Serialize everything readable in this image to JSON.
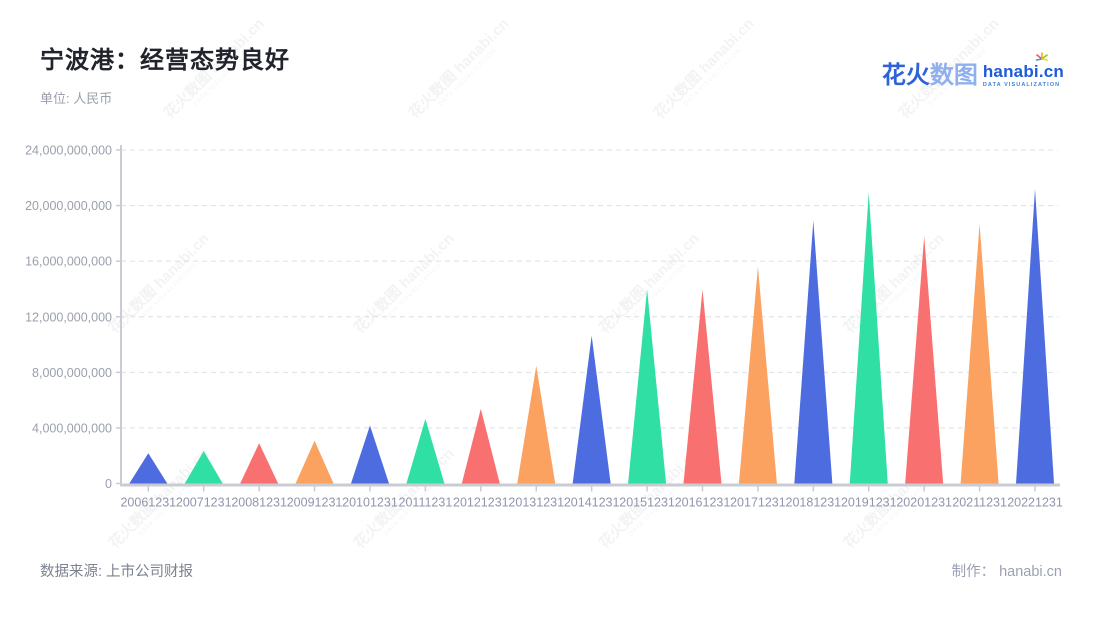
{
  "header": {
    "title": "宁波港：经营态势良好",
    "subtitle": "单位: 人民币"
  },
  "logo": {
    "brand_cn_bold": "花火",
    "brand_cn_light": "数图",
    "brand_en": "hanabi.cn",
    "tagline": "DATA VISUALIZATION",
    "sparkle_colors": [
      "#f5a623",
      "#7ed321",
      "#4a90d9",
      "#e85b5b",
      "#f8d620"
    ]
  },
  "watermark": {
    "line1": "花火数图 hanabi.cn",
    "line2": "DATA VISUALIZATION"
  },
  "footer": {
    "source": "数据来源: 上市公司财报",
    "credit_label": "制作：",
    "credit_value": "hanabi.cn"
  },
  "chart_data": {
    "type": "bar",
    "subtype": "pictorial-triangle",
    "title": "宁波港：经营态势良好",
    "unit_label": "单位: 人民币",
    "xlabel": "",
    "ylabel": "",
    "ylim": [
      0,
      24000000000
    ],
    "ytick_step": 4000000000,
    "yticks": [
      0,
      4000000000,
      8000000000,
      12000000000,
      16000000000,
      20000000000,
      24000000000
    ],
    "grid": "dashed-horizontal",
    "legend": "none",
    "categories": [
      "20061231",
      "20071231",
      "20081231",
      "20091231",
      "20101231",
      "20111231",
      "20121231",
      "20131231",
      "20141231",
      "20151231",
      "20161231",
      "20171231",
      "20181231",
      "20191231",
      "20201231",
      "20211231",
      "20221231"
    ],
    "values": [
      2180000000,
      2340000000,
      2900000000,
      3080000000,
      4170000000,
      4650000000,
      5370000000,
      8470000000,
      10630000000,
      14000000000,
      13950000000,
      15620000000,
      18920000000,
      20960000000,
      17790000000,
      18700000000,
      21200000000
    ],
    "bar_colors": [
      "#4d6ce0",
      "#2fdfa4",
      "#f87070",
      "#fba261"
    ],
    "axis_color": "#c9ccd3",
    "grid_color": "#dcdfe4",
    "y_label_color": "#9aa0ab",
    "x_label_color": "#8f96ab"
  }
}
